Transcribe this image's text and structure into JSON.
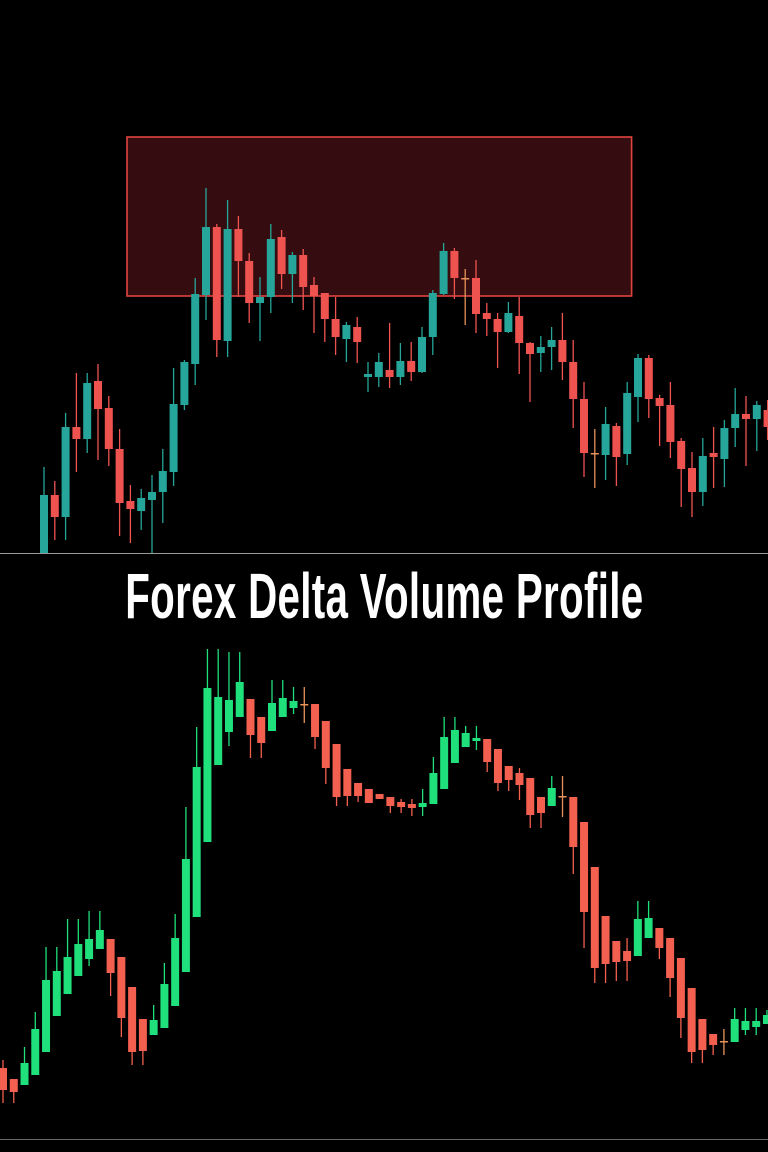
{
  "title": "Forex Delta Volume Profile",
  "colors": {
    "background": "#000000",
    "top_up": "#26a69a",
    "top_down": "#ef5350",
    "bottom_up": "#1fe07a",
    "bottom_down": "#f4604f",
    "doji": "#e8935a",
    "zone_border": "#e0443e",
    "zone_fill": "#350d10",
    "separator": "#9a9a9a"
  },
  "chart_data": [
    {
      "type": "candlestick",
      "title": "",
      "xlabel": "",
      "ylabel": "",
      "ylim": [
        47,
        600
      ],
      "grid": false,
      "axes_visible": false,
      "candle_format": [
        "open",
        "high",
        "low",
        "close"
      ],
      "zone": {
        "from_bar": 8,
        "to_bar": 54,
        "price_low": 304,
        "price_high": 463
      },
      "candles": [
        [
          47,
          133,
          47,
          105
        ],
        [
          105,
          119,
          60,
          83
        ],
        [
          83,
          187,
          60,
          173
        ],
        [
          173,
          227,
          128,
          161
        ],
        [
          161,
          227,
          147,
          217
        ],
        [
          219,
          236,
          140,
          191
        ],
        [
          192,
          204,
          134,
          151
        ],
        [
          151,
          171,
          64,
          97
        ],
        [
          99,
          115,
          57,
          91
        ],
        [
          89,
          111,
          70,
          102
        ],
        [
          100,
          125,
          45,
          108
        ],
        [
          108,
          151,
          77,
          129
        ],
        [
          128,
          232,
          114,
          196
        ],
        [
          195,
          240,
          190,
          238
        ],
        [
          236,
          322,
          215,
          306
        ],
        [
          305,
          412,
          280,
          373
        ],
        [
          373,
          376,
          243,
          260
        ],
        [
          259,
          400,
          243,
          371
        ],
        [
          371,
          384,
          303,
          339
        ],
        [
          339,
          347,
          277,
          297
        ],
        [
          297,
          323,
          259,
          303
        ],
        [
          303,
          376,
          287,
          361
        ],
        [
          363,
          370,
          311,
          326
        ],
        [
          326,
          348,
          297,
          345
        ],
        [
          345,
          351,
          290,
          313
        ],
        [
          315,
          323,
          267,
          304
        ],
        [
          307,
          307,
          258,
          281
        ],
        [
          281,
          303,
          245,
          263
        ],
        [
          261,
          278,
          238,
          275
        ],
        [
          273,
          283,
          237,
          258
        ],
        [
          223,
          238,
          208,
          226
        ],
        [
          223,
          247,
          213,
          238
        ],
        [
          230,
          277,
          212,
          223
        ],
        [
          223,
          257,
          215,
          239
        ],
        [
          239,
          258,
          219,
          228
        ],
        [
          228,
          273,
          227,
          263
        ],
        [
          263,
          310,
          245,
          307
        ],
        [
          306,
          357,
          305,
          349
        ],
        [
          349,
          352,
          301,
          322
        ],
        [
          322,
          331,
          275,
          322
        ],
        [
          322,
          340,
          267,
          286
        ],
        [
          287,
          297,
          264,
          281
        ],
        [
          281,
          287,
          232,
          268
        ],
        [
          268,
          298,
          267,
          287
        ],
        [
          284,
          303,
          226,
          257
        ],
        [
          257,
          258,
          198,
          246
        ],
        [
          247,
          264,
          228,
          253
        ],
        [
          253,
          273,
          230,
          260
        ],
        [
          260,
          287,
          220,
          238
        ],
        [
          238,
          260,
          172,
          201
        ],
        [
          201,
          218,
          123,
          147
        ],
        [
          147,
          171,
          112,
          147
        ],
        [
          145,
          193,
          120,
          176
        ],
        [
          174,
          177,
          114,
          143
        ],
        [
          146,
          218,
          135,
          207
        ],
        [
          203,
          246,
          178,
          242
        ],
        [
          242,
          245,
          182,
          201
        ],
        [
          202,
          205,
          154,
          194
        ],
        [
          195,
          218,
          142,
          158
        ],
        [
          159,
          162,
          93,
          131
        ],
        [
          132,
          148,
          83,
          108
        ],
        [
          108,
          162,
          94,
          144
        ],
        [
          147,
          173,
          112,
          143
        ],
        [
          141,
          180,
          113,
          172
        ],
        [
          172,
          212,
          153,
          186
        ],
        [
          186,
          204,
          134,
          181
        ],
        [
          181,
          199,
          149,
          195
        ],
        [
          190,
          200,
          160,
          173
        ]
      ]
    },
    {
      "type": "candlestick",
      "title": "",
      "xlabel": "",
      "ylabel": "",
      "ylim": [
        10,
        590
      ],
      "grid": false,
      "axes_visible": false,
      "candle_format": [
        "open",
        "high",
        "low",
        "close"
      ],
      "candles": [
        [
          82,
          90,
          47,
          60
        ],
        [
          71,
          71,
          47,
          58
        ],
        [
          65,
          103,
          65,
          87
        ],
        [
          75,
          138,
          75,
          121
        ],
        [
          98,
          203,
          98,
          170
        ],
        [
          134,
          203,
          134,
          179
        ],
        [
          156,
          231,
          156,
          193
        ],
        [
          174,
          231,
          174,
          206
        ],
        [
          191,
          239,
          184,
          211
        ],
        [
          201,
          239,
          201,
          220
        ],
        [
          211,
          211,
          154,
          177
        ],
        [
          193,
          193,
          113,
          132
        ],
        [
          163,
          163,
          85,
          98
        ],
        [
          131,
          131,
          85,
          99
        ],
        [
          115,
          145,
          115,
          130
        ],
        [
          122,
          187,
          122,
          166
        ],
        [
          144,
          236,
          144,
          212
        ],
        [
          178,
          343,
          178,
          291
        ],
        [
          233,
          423,
          233,
          383
        ],
        [
          308,
          501,
          308,
          462
        ],
        [
          385,
          501,
          385,
          453
        ],
        [
          418,
          498,
          404,
          450
        ],
        [
          433,
          498,
          433,
          468
        ],
        [
          451,
          451,
          392,
          415
        ],
        [
          433,
          433,
          392,
          407
        ],
        [
          419,
          470,
          419,
          447
        ],
        [
          433,
          470,
          433,
          452
        ],
        [
          442,
          463,
          436,
          449
        ],
        [
          446,
          463,
          427,
          446
        ],
        [
          446,
          446,
          401,
          413
        ],
        [
          429,
          429,
          366,
          382
        ],
        [
          406,
          406,
          344,
          353
        ],
        [
          381,
          381,
          344,
          354
        ],
        [
          367,
          367,
          348,
          354
        ],
        [
          361,
          361,
          347,
          347
        ],
        [
          356,
          356,
          351,
          351
        ],
        [
          353,
          353,
          337,
          344
        ],
        [
          348,
          351,
          337,
          343
        ],
        [
          346,
          351,
          334,
          342
        ],
        [
          343,
          361,
          334,
          347
        ],
        [
          346,
          393,
          346,
          377
        ],
        [
          361,
          433,
          361,
          413
        ],
        [
          387,
          433,
          387,
          420
        ],
        [
          403,
          424,
          403,
          417
        ],
        [
          409,
          424,
          400,
          412
        ],
        [
          411,
          411,
          378,
          388
        ],
        [
          401,
          401,
          359,
          367
        ],
        [
          384,
          384,
          359,
          370
        ],
        [
          377,
          382,
          350,
          365
        ],
        [
          372,
          372,
          322,
          335
        ],
        [
          353,
          353,
          322,
          337
        ],
        [
          344,
          374,
          344,
          362
        ],
        [
          354,
          374,
          333,
          354
        ],
        [
          353,
          353,
          276,
          303
        ],
        [
          328,
          328,
          202,
          238
        ],
        [
          283,
          283,
          167,
          182
        ],
        [
          234,
          234,
          167,
          186
        ],
        [
          209,
          209,
          169,
          188
        ],
        [
          199,
          212,
          169,
          189
        ],
        [
          194,
          249,
          194,
          231
        ],
        [
          212,
          249,
          212,
          232
        ],
        [
          222,
          222,
          191,
          202
        ],
        [
          212,
          212,
          153,
          172
        ],
        [
          192,
          192,
          112,
          132
        ],
        [
          162,
          162,
          87,
          98
        ],
        [
          131,
          131,
          87,
          100
        ],
        [
          116,
          116,
          95,
          105
        ],
        [
          109,
          121,
          95,
          109
        ],
        [
          108,
          142,
          108,
          131
        ],
        [
          120,
          142,
          115,
          129
        ],
        [
          123,
          142,
          115,
          129
        ],
        [
          126,
          140,
          126,
          135
        ]
      ]
    }
  ]
}
